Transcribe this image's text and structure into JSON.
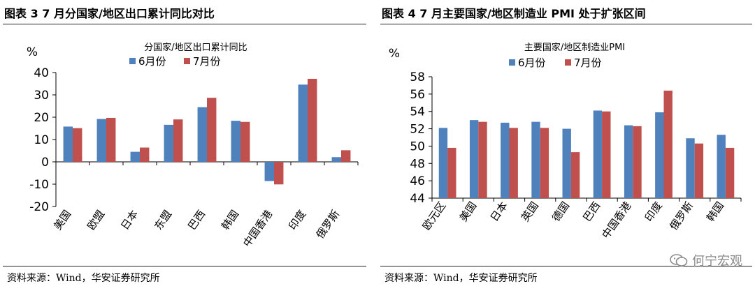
{
  "left": {
    "figure_title": "图表 3 7 月分国家/地区出口累计同比对比",
    "source": "资料来源：Wind，华安证券研究所"
  },
  "right": {
    "figure_title": "图表 4 7 月主要国家/地区制造业 PMI 处于扩张区间",
    "source": "资料来源：Wind，华安证券研究所"
  },
  "watermark": "何宁宏观",
  "colors": {
    "series1": "#4f81bd",
    "series2": "#c0504d",
    "axis": "#000000"
  },
  "chart_data": [
    {
      "type": "bar",
      "title": "分国家/地区出口累计同比",
      "ylabel": "%",
      "xlabel": "",
      "categories": [
        "美国",
        "欧盟",
        "日本",
        "东盟",
        "巴西",
        "韩国",
        "中国香港",
        "印度",
        "俄罗斯"
      ],
      "series": [
        {
          "name": "6月份",
          "values": [
            15.8,
            19.2,
            4.5,
            16.6,
            24.5,
            18.4,
            -8.6,
            34.6,
            2.1
          ]
        },
        {
          "name": "7月份",
          "values": [
            15.1,
            19.7,
            6.4,
            19.0,
            28.7,
            17.9,
            -10.1,
            37.2,
            5.2
          ]
        }
      ],
      "ylim": [
        -20,
        40
      ],
      "yticks": [
        -20,
        -10,
        0,
        10,
        20,
        30,
        40
      ],
      "grid": false,
      "legend": "top"
    },
    {
      "type": "bar",
      "title": "主要国家/地区制造业PMI",
      "ylabel": "%",
      "xlabel": "",
      "categories": [
        "欧元区",
        "美国",
        "日本",
        "英国",
        "德国",
        "巴西",
        "中国香港",
        "印度",
        "俄罗斯",
        "韩国"
      ],
      "series": [
        {
          "name": "6月份",
          "values": [
            52.1,
            53.0,
            52.7,
            52.8,
            52.0,
            54.1,
            52.4,
            53.9,
            50.9,
            51.3
          ]
        },
        {
          "name": "7月份",
          "values": [
            49.8,
            52.8,
            52.1,
            52.1,
            49.3,
            54.0,
            52.3,
            56.4,
            50.3,
            49.8
          ]
        }
      ],
      "ylim": [
        44,
        58
      ],
      "yticks": [
        44,
        46,
        48,
        50,
        52,
        54,
        56,
        58
      ],
      "grid": false,
      "legend": "top"
    }
  ]
}
